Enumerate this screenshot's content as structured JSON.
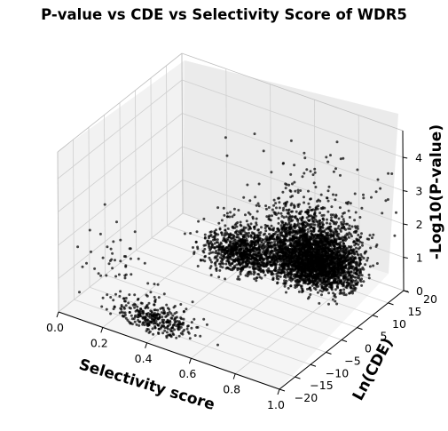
{
  "chart_data": {
    "type": "scatter",
    "projection": "3d",
    "title": "P-value vs CDE vs Selectivity Score of WDR5",
    "xlabel": "Selectivity score",
    "ylabel": "Ln(CDE)",
    "zlabel": "-Log10(P-value)",
    "xlim": [
      0.0,
      1.0
    ],
    "ylim": [
      -20,
      20
    ],
    "zlim": [
      0,
      4.8
    ],
    "x_ticks": [
      "0.0",
      "0.2",
      "0.4",
      "0.6",
      "0.8",
      "1.0"
    ],
    "y_ticks": [
      "−20",
      "−15",
      "−10",
      "−5",
      "0",
      "5",
      "10",
      "15",
      "20"
    ],
    "z_ticks": [
      "0",
      "1",
      "2",
      "3",
      "4"
    ],
    "grid": true,
    "marker_color": "#000000",
    "clusters": [
      {
        "x_center": 0.4,
        "x_spread": 0.09,
        "y_center": -17.5,
        "y_spread": 1.6,
        "z_center": 0.3,
        "z_spread": 0.35,
        "count": 340
      },
      {
        "x_center": 0.15,
        "x_spread": 0.07,
        "y_center": -14.0,
        "y_spread": 3.0,
        "z_center": 1.1,
        "z_spread": 0.6,
        "count": 40
      },
      {
        "x_center": 0.5,
        "x_spread": 0.07,
        "y_center": 3.5,
        "y_spread": 2.5,
        "z_center": 0.9,
        "z_spread": 0.45,
        "count": 900
      },
      {
        "x_center": 0.8,
        "x_spread": 0.1,
        "y_center": 5.0,
        "y_spread": 3.0,
        "z_center": 1.1,
        "z_spread": 0.75,
        "count": 3200
      },
      {
        "x_center": 0.75,
        "x_spread": 0.15,
        "y_center": 8.0,
        "y_spread": 6.0,
        "z_center": 2.2,
        "z_spread": 1.0,
        "count": 120
      }
    ]
  }
}
